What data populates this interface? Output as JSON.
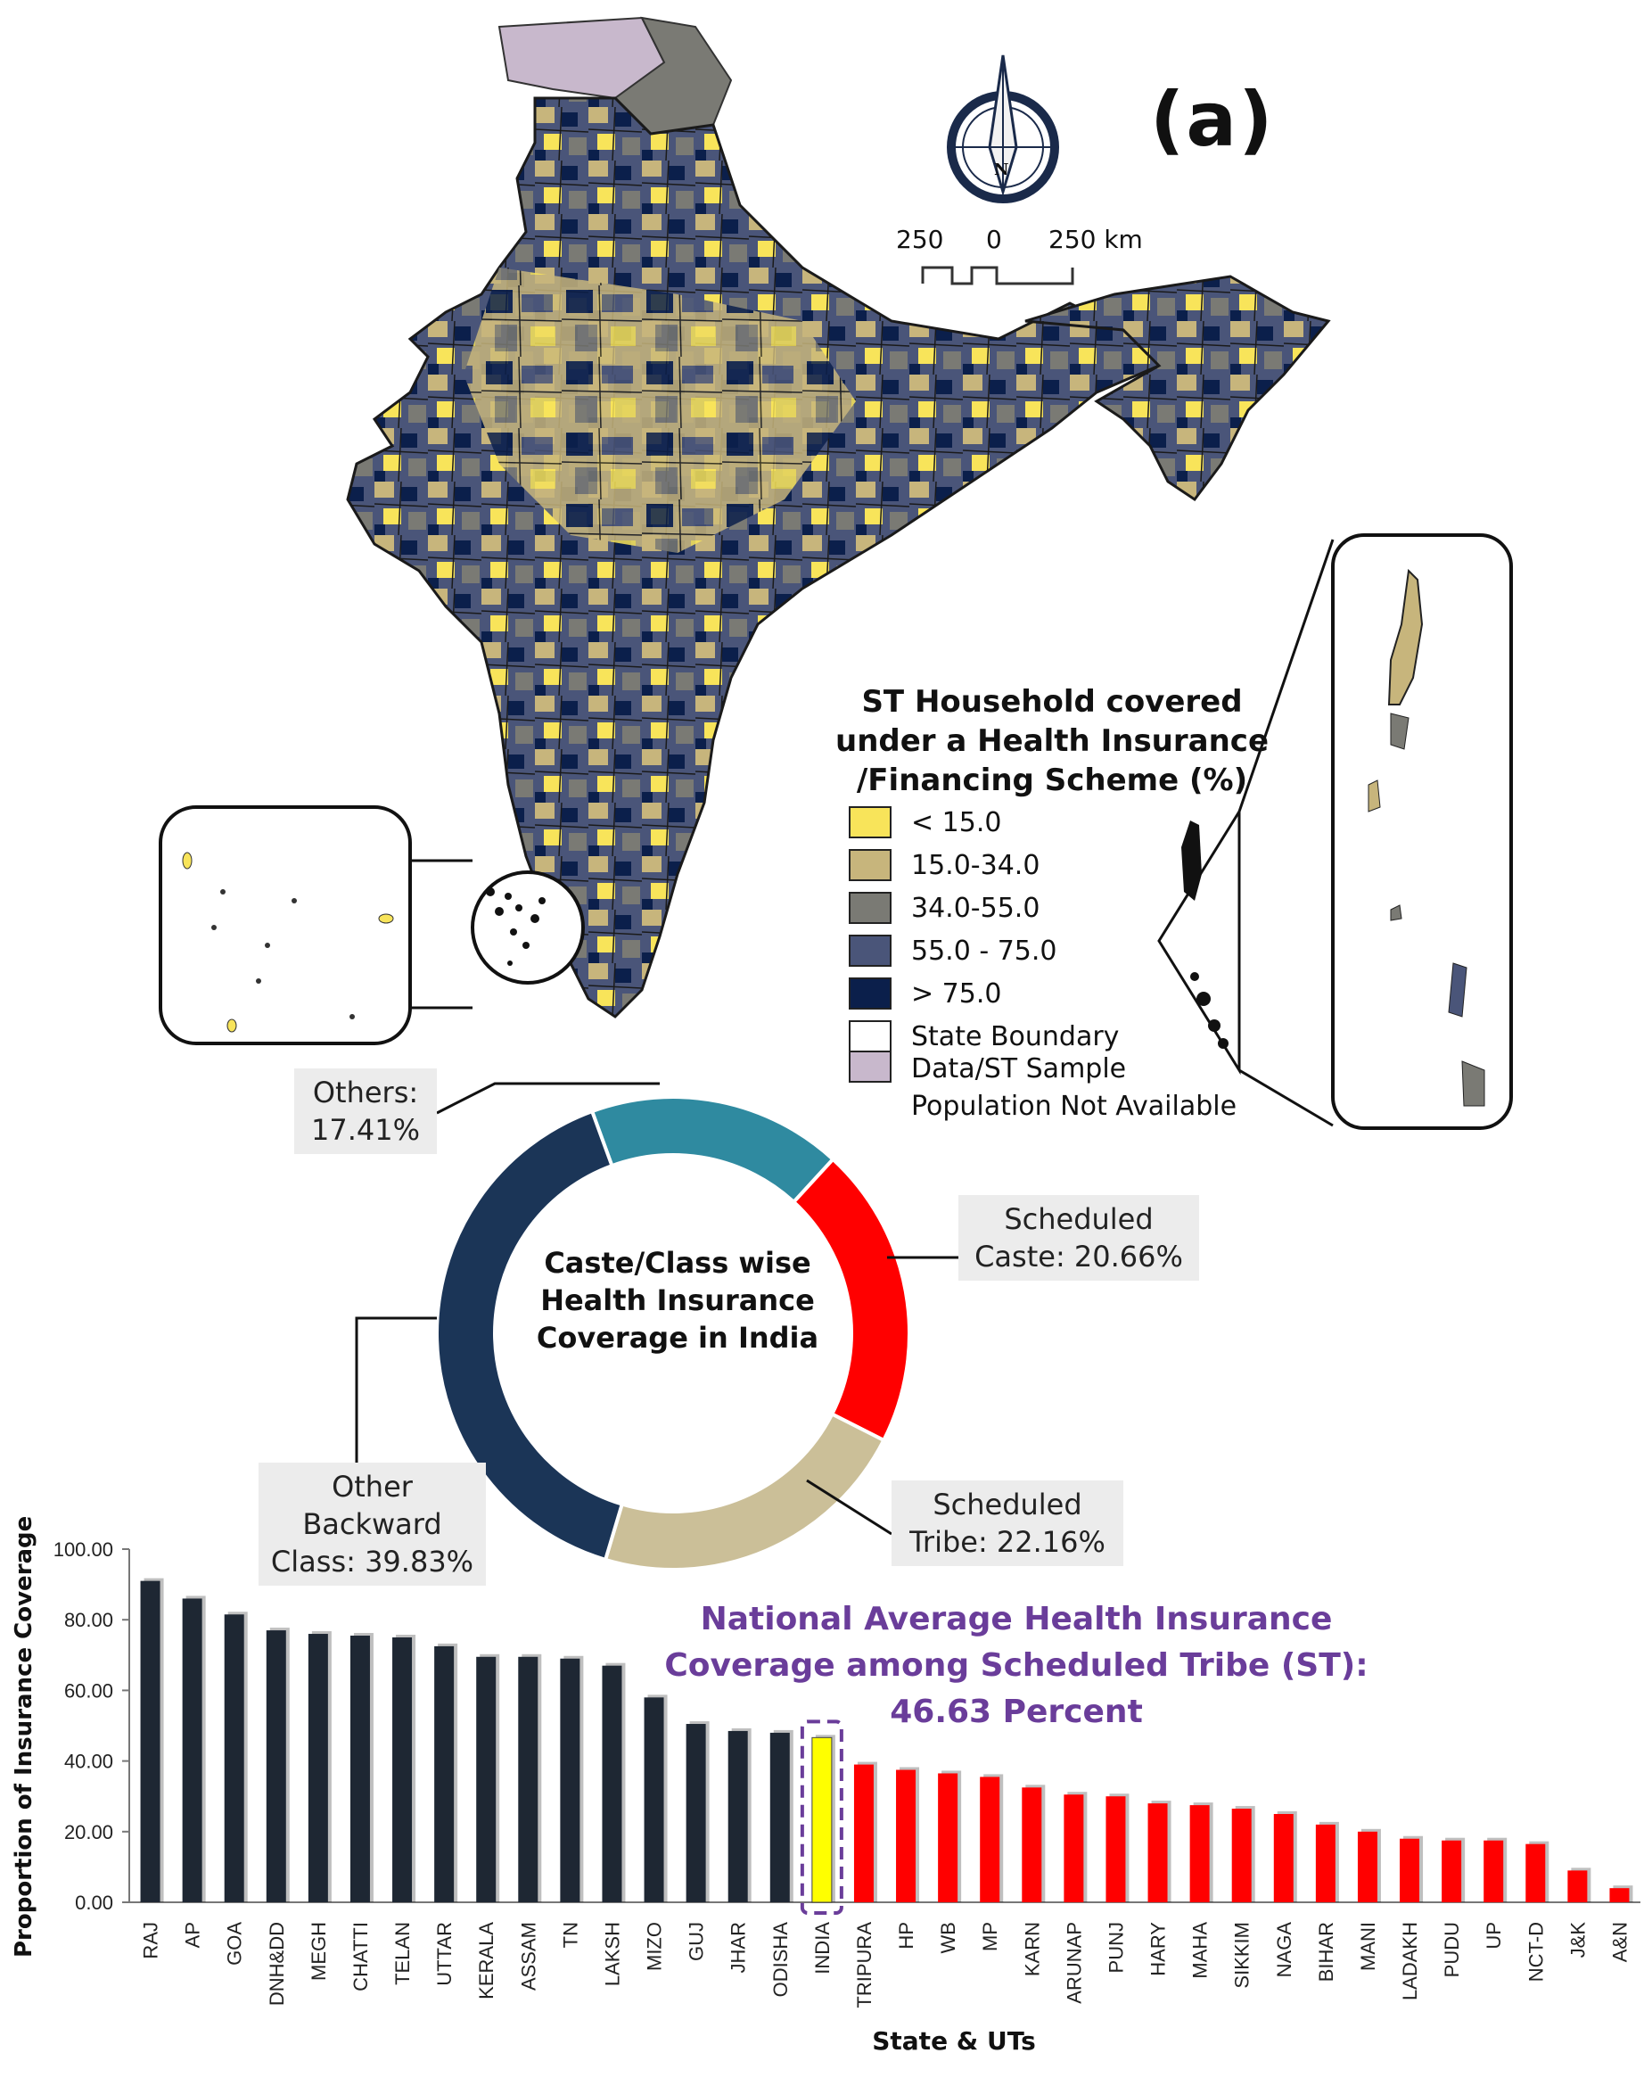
{
  "panel_label": "(a)",
  "scale_bar": {
    "left": "250",
    "center": "0",
    "right": "250 km"
  },
  "compass": {
    "letter": "N"
  },
  "map_legend": {
    "title_lines": [
      "ST Household covered",
      "under a Health Insurance",
      "/Financing Scheme (%)"
    ],
    "items": [
      {
        "label": "< 15.0",
        "color": "#f8e45a"
      },
      {
        "label": "15.0-34.0",
        "color": "#c7b57c"
      },
      {
        "label": "34.0-55.0",
        "color": "#7a7a74"
      },
      {
        "label": "55.0 - 75.0",
        "color": "#4a5579"
      },
      {
        "label": "> 75.0",
        "color": "#0b1f4b"
      },
      {
        "label": "State Boundary",
        "color": "#ffffff"
      }
    ],
    "na_item": {
      "lines": [
        "Data/ST Sample",
        "Population Not Available"
      ],
      "color": "#c8b8cc"
    }
  },
  "donut": {
    "center_lines": [
      "Caste/Class wise",
      "Health Insurance",
      "Coverage in India"
    ],
    "slices": [
      {
        "name": "Others",
        "value": 17.41,
        "color": "#2f8aa0",
        "callout_lines": [
          "Others:",
          "17.41%"
        ]
      },
      {
        "name": "Scheduled Caste",
        "value": 20.66,
        "color": "#ff0000",
        "callout_lines": [
          "Scheduled",
          "Caste: 20.66%"
        ]
      },
      {
        "name": "Scheduled Tribe",
        "value": 22.16,
        "color": "#cbbf98",
        "callout_lines": [
          "Scheduled",
          "Tribe: 22.16%"
        ]
      },
      {
        "name": "Other Backward Class",
        "value": 39.83,
        "color": "#1b3557",
        "callout_lines": [
          "Other",
          "Backward",
          "Class: 39.83%"
        ]
      }
    ]
  },
  "annotation_lines": [
    "National Average Health Insurance",
    "Coverage among Scheduled Tribe (ST):",
    "46.63 Percent"
  ],
  "chart_data": {
    "type": "bar",
    "ylabel": "Proportion of Insurance Coverage",
    "xlabel": "State & UTs",
    "ylim": [
      0,
      100
    ],
    "yticks": [
      "0.00",
      "20.00",
      "40.00",
      "60.00",
      "80.00",
      "100.00"
    ],
    "categories": [
      "RAJ",
      "AP",
      "GOA",
      "DNH&DD",
      "MEGH",
      "CHATTI",
      "TELAN",
      "UTTAR",
      "KERALA",
      "ASSAM",
      "TN",
      "LAKSH",
      "MIZO",
      "GUJ",
      "JHAR",
      "ODISHA",
      "INDIA",
      "TRIPURA",
      "HP",
      "WB",
      "MP",
      "KARN",
      "ARUNAP",
      "PUNJ",
      "HARY",
      "MAHA",
      "SIKKIM",
      "NAGA",
      "BIHAR",
      "MANI",
      "LADAKH",
      "PUDU",
      "UP",
      "NCT-D",
      "J&K",
      "A&N"
    ],
    "values": [
      91.0,
      86.0,
      81.5,
      77.0,
      76.0,
      75.5,
      75.0,
      72.5,
      69.5,
      69.5,
      69.0,
      67.0,
      58.0,
      50.5,
      48.5,
      48.0,
      46.63,
      39.0,
      37.5,
      36.5,
      35.5,
      32.5,
      30.5,
      30.0,
      28.0,
      27.5,
      26.5,
      25.0,
      22.0,
      20.0,
      18.0,
      17.5,
      17.5,
      16.5,
      9.0,
      4.0
    ],
    "colors": {
      "above": "#1e2733",
      "national": "#ffff00",
      "below": "#ff0000"
    }
  }
}
